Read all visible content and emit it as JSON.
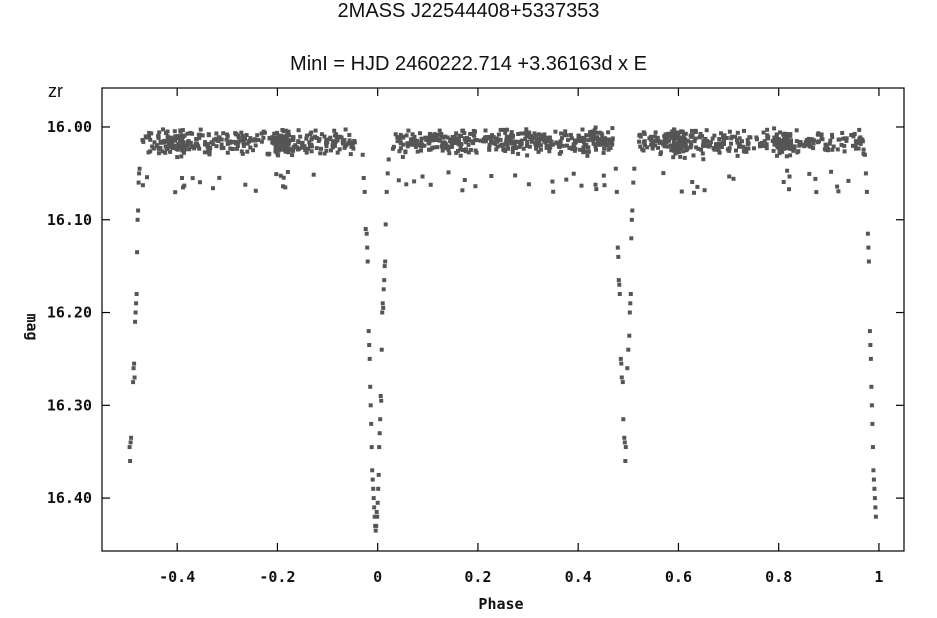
{
  "chart_data": {
    "type": "scatter",
    "title": "2MASS J22544408+5337353",
    "subtitle": "MinI = HJD 2460222.714 +3.36163d x E",
    "filter_label": "zr",
    "xlabel": "Phase",
    "ylabel": "mag",
    "xlim": [
      -0.55,
      1.05
    ],
    "ylim": [
      16.457,
      15.958
    ],
    "y_inverted": true,
    "grid": false,
    "x_ticks": [
      -0.4,
      -0.2,
      0,
      0.2,
      0.4,
      0.6,
      0.8,
      1
    ],
    "x_tick_labels": [
      "-0.4",
      "-0.2",
      "0",
      "0.2",
      "0.4",
      "0.6",
      "0.8",
      "1"
    ],
    "y_ticks": [
      16.0,
      16.1,
      16.2,
      16.3,
      16.4
    ],
    "y_tick_labels": [
      "16.00",
      "16.10",
      "16.20",
      "16.30",
      "16.40"
    ],
    "marker_color": "#555555",
    "series": [
      {
        "description": "eclipse points",
        "points": [
          [
            -0.495,
            16.345
          ],
          [
            -0.494,
            16.36
          ],
          [
            -0.493,
            16.34
          ],
          [
            -0.492,
            16.335
          ],
          [
            -0.488,
            16.275
          ],
          [
            -0.487,
            16.26
          ],
          [
            -0.486,
            16.255
          ],
          [
            -0.485,
            16.27
          ],
          [
            -0.484,
            16.21
          ],
          [
            -0.483,
            16.2
          ],
          [
            -0.482,
            16.19
          ],
          [
            -0.481,
            16.18
          ],
          [
            -0.48,
            16.135
          ],
          [
            -0.479,
            16.1
          ],
          [
            -0.478,
            16.09
          ],
          [
            -0.477,
            16.06
          ],
          [
            -0.476,
            16.05
          ],
          [
            -0.475,
            16.045
          ],
          [
            -0.03,
            16.03
          ],
          [
            -0.028,
            16.055
          ],
          [
            -0.026,
            16.07
          ],
          [
            -0.024,
            16.11
          ],
          [
            -0.022,
            16.115
          ],
          [
            -0.021,
            16.13
          ],
          [
            -0.02,
            16.145
          ],
          [
            -0.018,
            16.22
          ],
          [
            -0.017,
            16.235
          ],
          [
            -0.016,
            16.25
          ],
          [
            -0.015,
            16.28
          ],
          [
            -0.014,
            16.3
          ],
          [
            -0.013,
            16.32
          ],
          [
            -0.012,
            16.345
          ],
          [
            -0.011,
            16.37
          ],
          [
            -0.01,
            16.38
          ],
          [
            -0.009,
            16.39
          ],
          [
            -0.008,
            16.4
          ],
          [
            -0.007,
            16.41
          ],
          [
            -0.006,
            16.42
          ],
          [
            -0.005,
            16.43
          ],
          [
            -0.004,
            16.435
          ],
          [
            -0.003,
            16.43
          ],
          [
            -0.002,
            16.415
          ],
          [
            -0.001,
            16.42
          ],
          [
            0.0,
            16.405
          ],
          [
            0.001,
            16.39
          ],
          [
            0.002,
            16.375
          ],
          [
            0.003,
            16.345
          ],
          [
            0.004,
            16.33
          ],
          [
            0.005,
            16.315
          ],
          [
            0.006,
            16.29
          ],
          [
            0.007,
            16.295
          ],
          [
            0.008,
            16.24
          ],
          [
            0.009,
            16.2
          ],
          [
            0.01,
            16.19
          ],
          [
            0.011,
            16.195
          ],
          [
            0.012,
            16.175
          ],
          [
            0.013,
            16.165
          ],
          [
            0.014,
            16.15
          ],
          [
            0.015,
            16.145
          ],
          [
            0.016,
            16.105
          ],
          [
            0.018,
            16.07
          ],
          [
            0.02,
            16.05
          ],
          [
            0.022,
            16.035
          ],
          [
            0.475,
            16.045
          ],
          [
            0.477,
            16.07
          ],
          [
            0.479,
            16.13
          ],
          [
            0.48,
            16.14
          ],
          [
            0.481,
            16.165
          ],
          [
            0.482,
            16.17
          ],
          [
            0.483,
            16.18
          ],
          [
            0.485,
            16.25
          ],
          [
            0.486,
            16.255
          ],
          [
            0.487,
            16.27
          ],
          [
            0.489,
            16.275
          ],
          [
            0.49,
            16.315
          ],
          [
            0.492,
            16.335
          ],
          [
            0.493,
            16.34
          ],
          [
            0.494,
            16.36
          ],
          [
            0.495,
            16.345
          ],
          [
            0.498,
            16.26
          ],
          [
            0.5,
            16.24
          ],
          [
            0.502,
            16.225
          ],
          [
            0.503,
            16.2
          ],
          [
            0.504,
            16.19
          ],
          [
            0.505,
            16.18
          ],
          [
            0.506,
            16.12
          ],
          [
            0.507,
            16.1
          ],
          [
            0.508,
            16.09
          ],
          [
            0.51,
            16.06
          ],
          [
            0.512,
            16.045
          ],
          [
            0.972,
            16.03
          ],
          [
            0.974,
            16.05
          ],
          [
            0.976,
            16.07
          ],
          [
            0.978,
            16.115
          ],
          [
            0.979,
            16.13
          ],
          [
            0.98,
            16.145
          ],
          [
            0.982,
            16.22
          ],
          [
            0.983,
            16.235
          ],
          [
            0.984,
            16.25
          ],
          [
            0.985,
            16.28
          ],
          [
            0.986,
            16.3
          ],
          [
            0.987,
            16.32
          ],
          [
            0.988,
            16.345
          ],
          [
            0.989,
            16.37
          ],
          [
            0.99,
            16.38
          ],
          [
            0.991,
            16.39
          ],
          [
            0.992,
            16.4
          ],
          [
            0.993,
            16.41
          ],
          [
            0.994,
            16.42
          ]
        ]
      },
      {
        "description": "out-of-eclipse plateau (sampled)",
        "segments": [
          {
            "x_range": [
              -0.47,
              -0.04
            ],
            "mag_center": 16.017,
            "mag_spread": 0.035,
            "count": 420,
            "clumps": [
              -0.4,
              -0.19
            ]
          },
          {
            "x_range": [
              0.03,
              0.47
            ],
            "mag_center": 16.016,
            "mag_spread": 0.033,
            "count": 430,
            "clumps": []
          },
          {
            "x_range": [
              0.52,
              0.97
            ],
            "mag_center": 16.017,
            "mag_spread": 0.035,
            "count": 430,
            "clumps": [
              0.6,
              0.81
            ]
          }
        ]
      }
    ]
  }
}
